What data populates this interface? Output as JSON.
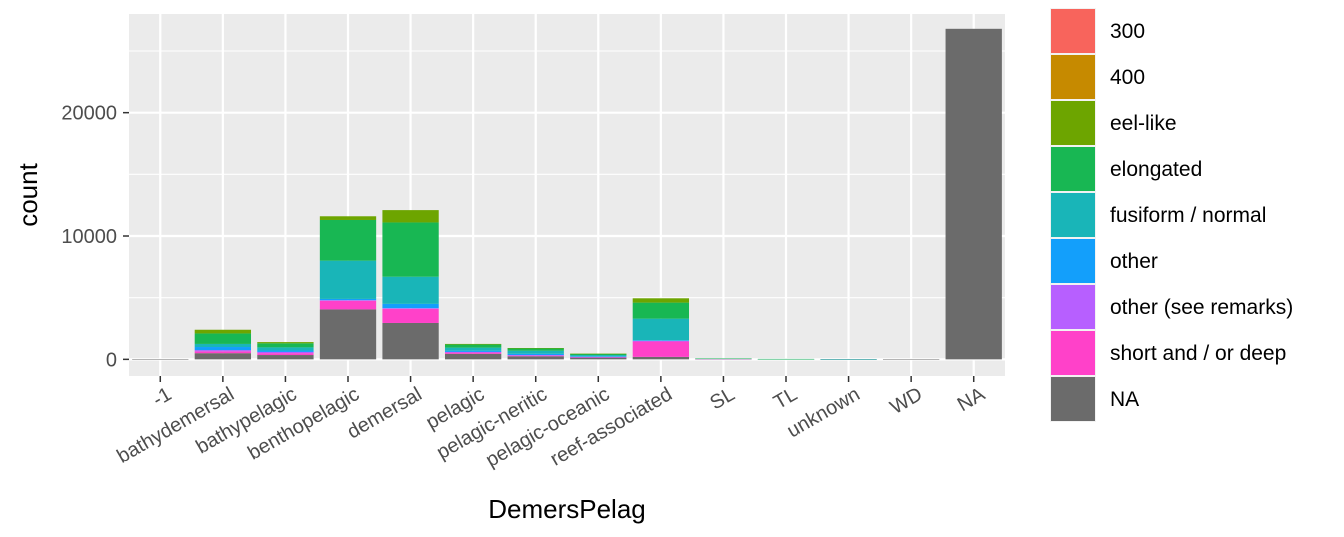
{
  "chart_data": {
    "type": "bar",
    "stacked": true,
    "xlabel": "DemersPelag",
    "ylabel": "count",
    "ylim": [
      -1350,
      28000
    ],
    "y_ticks": [
      0,
      10000,
      20000
    ],
    "y_tick_labels": [
      "0",
      "10000",
      "20000"
    ],
    "grid": true,
    "legend_position": "right",
    "categories": [
      "-1",
      "bathydemersal",
      "bathypelagic",
      "benthopelagic",
      "demersal",
      "pelagic",
      "pelagic-neritic",
      "pelagic-oceanic",
      "reef-associated",
      "SL",
      "TL",
      "unknown",
      "WD",
      "NA"
    ],
    "series": [
      {
        "name": "NA",
        "color": "#6b6b6b",
        "values": [
          20,
          500,
          350,
          4050,
          2950,
          450,
          250,
          150,
          200,
          40,
          25,
          10,
          15,
          26800
        ]
      },
      {
        "name": "short and / or deep",
        "color": "#ff41c9",
        "values": [
          0,
          150,
          150,
          700,
          1150,
          100,
          50,
          20,
          1250,
          5,
          0,
          0,
          0,
          0
        ]
      },
      {
        "name": "other (see remarks)",
        "color": "#b75fff",
        "values": [
          0,
          100,
          100,
          50,
          50,
          50,
          50,
          30,
          50,
          0,
          0,
          0,
          0,
          0
        ]
      },
      {
        "name": "other",
        "color": "#139ffb",
        "values": [
          0,
          250,
          120,
          100,
          350,
          100,
          100,
          50,
          50,
          0,
          0,
          0,
          0,
          0
        ]
      },
      {
        "name": "fusiform / normal",
        "color": "#19b5b8",
        "values": [
          0,
          250,
          250,
          3100,
          2200,
          250,
          250,
          100,
          1750,
          15,
          5,
          5,
          0,
          0
        ]
      },
      {
        "name": "elongated",
        "color": "#18b753",
        "values": [
          0,
          850,
          330,
          3300,
          4400,
          250,
          200,
          100,
          1300,
          10,
          5,
          0,
          0,
          0
        ]
      },
      {
        "name": "eel-like",
        "color": "#6da500",
        "values": [
          0,
          300,
          100,
          300,
          1000,
          50,
          20,
          10,
          350,
          0,
          0,
          0,
          0,
          0
        ]
      },
      {
        "name": "400",
        "color": "#c68a00",
        "values": [
          0,
          0,
          0,
          0,
          0,
          0,
          0,
          0,
          0,
          0,
          0,
          0,
          0,
          0
        ]
      },
      {
        "name": "300",
        "color": "#f8645c",
        "values": [
          0,
          0,
          0,
          0,
          0,
          0,
          0,
          0,
          0,
          0,
          0,
          0,
          0,
          0
        ]
      }
    ],
    "legend_order": [
      "300",
      "400",
      "eel-like",
      "elongated",
      "fusiform / normal",
      "other",
      "other (see remarks)",
      "short and / or deep",
      "NA"
    ]
  }
}
